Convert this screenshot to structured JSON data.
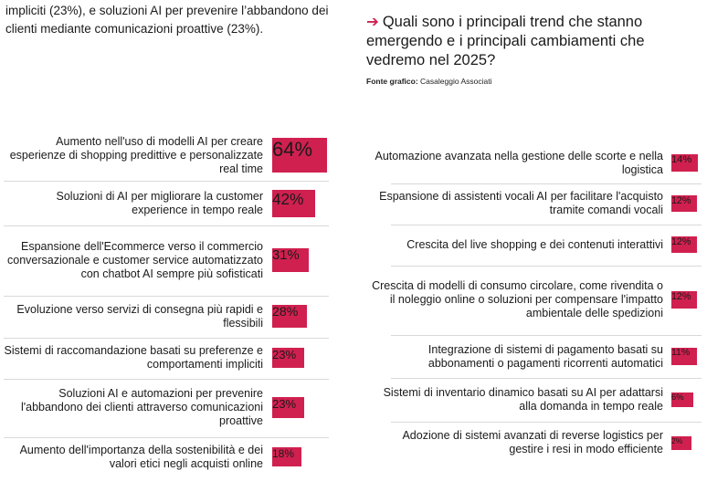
{
  "intro_text": "impliciti (23%), e soluzioni AI per prevenire l’abbandono dei clienti mediante comunicazioni proattive (23%).",
  "heading": {
    "arrow_icon": "arrow-right-icon",
    "text": "Quali sono i principali trend che stanno emergendo e i principali cambiamenti che vedremo nel 2025?"
  },
  "source": {
    "label": "Fonte grafico:",
    "value": "Casaleggio Associati"
  },
  "colors": {
    "accent": "#d0204f"
  },
  "chart_data": [
    {
      "type": "bar",
      "categories": [
        "Aumento nell'uso di modelli AI per creare esperienze di shopping predittive e personalizzate real time",
        "Soluzioni di AI per migliorare la customer experience in tempo reale",
        "Espansione dell'Ecommerce verso il commercio conversazionale e customer service automatizzato con chatbot AI sempre più sofisticati",
        "Evoluzione verso servizi di consegna più rapidi e flessibili",
        "Sistemi di raccomandazione basati su preferenze e comportamenti impliciti",
        "Soluzioni AI e automazioni per prevenire l'abbandono dei clienti attraverso comunicazioni proattive",
        "Aumento dell'importanza della sostenibilità e dei valori etici negli acquisti online"
      ],
      "values": [
        64,
        42,
        31,
        28,
        23,
        23,
        18
      ],
      "value_labels": [
        "64%",
        "42%",
        "31%",
        "28%",
        "23%",
        "23%",
        "18%"
      ]
    },
    {
      "type": "bar",
      "categories": [
        "Automazione avanzata nella gestione delle scorte e nella logistica",
        "Espansione di assistenti vocali AI per facilitare l'acquisto tramite comandi vocali",
        "Crescita del live shopping e dei contenuti interattivi",
        "Crescita di modelli di consumo circolare, come rivendita o il noleggio online o soluzioni per compensare l'impatto ambientale delle spedizioni",
        "Integrazione di sistemi di pagamento basati su abbonamenti o pagamenti ricorrenti automatici",
        "Sistemi di inventario dinamico basati su AI per adattarsi alla domanda in tempo reale",
        "Adozione di sistemi avanzati di reverse logistics per gestire i resi in modo efficiente"
      ],
      "values": [
        14,
        12,
        12,
        12,
        11,
        6,
        2
      ],
      "value_labels": [
        "14%",
        "12%",
        "12%",
        "12%",
        "11%",
        "6%",
        "2%"
      ]
    }
  ]
}
